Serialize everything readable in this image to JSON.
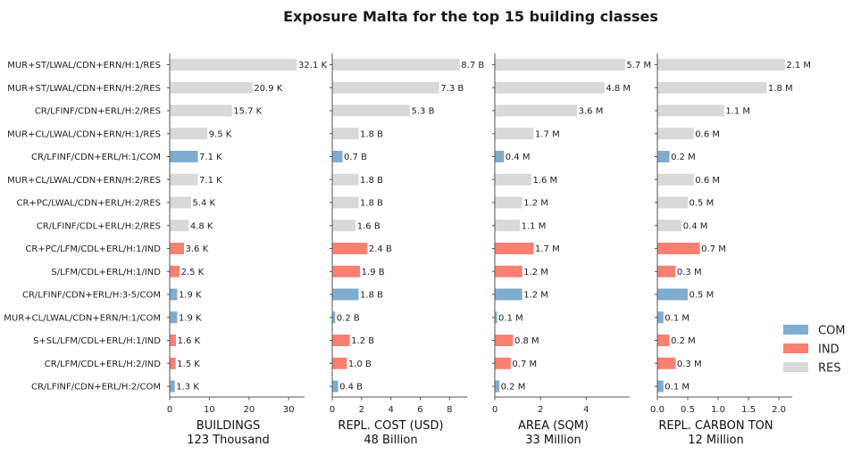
{
  "chart_data": {
    "type": "bar",
    "orientation": "horizontal",
    "title": "Exposure Malta for the top 15 building classes",
    "categories": [
      "MUR+ST/LWAL/CDN+ERN/H:1/RES",
      "MUR+ST/LWAL/CDN+ERN/H:2/RES",
      "CR/LFINF/CDN+ERL/H:2/RES",
      "MUR+CL/LWAL/CDN+ERN/H:1/RES",
      "CR/LFINF/CDN+ERL/H:1/COM",
      "MUR+CL/LWAL/CDN+ERN/H:2/RES",
      "CR+PC/LWAL/CDN+ERL/H:2/RES",
      "CR/LFINF/CDL+ERL/H:2/RES",
      "CR+PC/LFM/CDL+ERL/H:1/IND",
      "S/LFM/CDL+ERL/H:1/IND",
      "CR/LFINF/CDN+ERL/H:3-5/COM",
      "MUR+CL/LWAL/CDN+ERN/H:1/COM",
      "S+SL/LFM/CDL+ERL/H:1/IND",
      "CR/LFM/CDL+ERL/H:2/IND",
      "CR/LFINF/CDN+ERL/H:2/COM"
    ],
    "occupancy": [
      "RES",
      "RES",
      "RES",
      "RES",
      "COM",
      "RES",
      "RES",
      "RES",
      "IND",
      "IND",
      "COM",
      "COM",
      "IND",
      "IND",
      "COM"
    ],
    "colors": {
      "COM": "#7fadd0",
      "IND": "#fa8072",
      "RES": "#d9d9d9"
    },
    "legend": {
      "position": "right",
      "entries": [
        "COM",
        "IND",
        "RES"
      ]
    },
    "panels": [
      {
        "xlabel": "BUILDINGS",
        "total": "123 Thousand",
        "xlim": [
          0,
          34
        ],
        "ticks": [
          0,
          10,
          20,
          30
        ],
        "tick_labels": [
          "0",
          "10",
          "20",
          "30"
        ],
        "values": [
          32.1,
          20.9,
          15.7,
          9.5,
          7.1,
          7.1,
          5.4,
          4.8,
          3.6,
          2.5,
          1.9,
          1.9,
          1.6,
          1.5,
          1.3
        ],
        "value_labels": [
          "32.1 K",
          "20.9 K",
          "15.7 K",
          "9.5 K",
          "7.1 K",
          "7.1 K",
          "5.4 K",
          "4.8 K",
          "3.6 K",
          "2.5 K",
          "1.9 K",
          "1.9 K",
          "1.6 K",
          "1.5 K",
          "1.3 K"
        ]
      },
      {
        "xlabel": "REPL. COST (USD)",
        "total": "48 Billion",
        "xlim": [
          0,
          9.2
        ],
        "ticks": [
          0,
          2,
          4,
          6,
          8
        ],
        "tick_labels": [
          "0",
          "2",
          "4",
          "6",
          "8"
        ],
        "values": [
          8.7,
          7.3,
          5.3,
          1.8,
          0.7,
          1.8,
          1.8,
          1.6,
          2.4,
          1.9,
          1.8,
          0.2,
          1.2,
          1.0,
          0.4
        ],
        "value_labels": [
          "8.7 B",
          "7.3 B",
          "5.3 B",
          "1.8 B",
          "0.7 B",
          "1.8 B",
          "1.8 B",
          "1.6 B",
          "2.4 B",
          "1.9 B",
          "1.8 B",
          "0.2 B",
          "1.2 B",
          "1.0 B",
          "0.4 B"
        ]
      },
      {
        "xlabel": "AREA (SQM)",
        "total": "33 Million",
        "xlim": [
          0,
          5.9
        ],
        "ticks": [
          0,
          2,
          4
        ],
        "tick_labels": [
          "0",
          "2",
          "4"
        ],
        "values": [
          5.7,
          4.8,
          3.6,
          1.7,
          0.4,
          1.6,
          1.2,
          1.1,
          1.7,
          1.2,
          1.2,
          0.1,
          0.8,
          0.7,
          0.2
        ],
        "value_labels": [
          "5.7 M",
          "4.8 M",
          "3.6 M",
          "1.7 M",
          "0.4 M",
          "1.6 M",
          "1.2 M",
          "1.1 M",
          "1.7 M",
          "1.2 M",
          "1.2 M",
          "0.1 M",
          "0.8 M",
          "0.7 M",
          "0.2 M"
        ]
      },
      {
        "xlabel": "REPL. CARBON TON",
        "total": "12 Million",
        "xlim": [
          0,
          2.22
        ],
        "ticks": [
          0,
          0.5,
          1,
          1.5,
          2
        ],
        "tick_labels": [
          "0.0",
          "0.5",
          "1.0",
          "1.5",
          "2.0"
        ],
        "values": [
          2.1,
          1.8,
          1.1,
          0.6,
          0.2,
          0.6,
          0.5,
          0.4,
          0.7,
          0.3,
          0.5,
          0.1,
          0.2,
          0.3,
          0.1
        ],
        "value_labels": [
          "2.1 M",
          "1.8 M",
          "1.1 M",
          "0.6 M",
          "0.2 M",
          "0.6 M",
          "0.5 M",
          "0.4 M",
          "0.7 M",
          "0.3 M",
          "0.5 M",
          "0.1 M",
          "0.2 M",
          "0.3 M",
          "0.1 M"
        ]
      }
    ]
  }
}
